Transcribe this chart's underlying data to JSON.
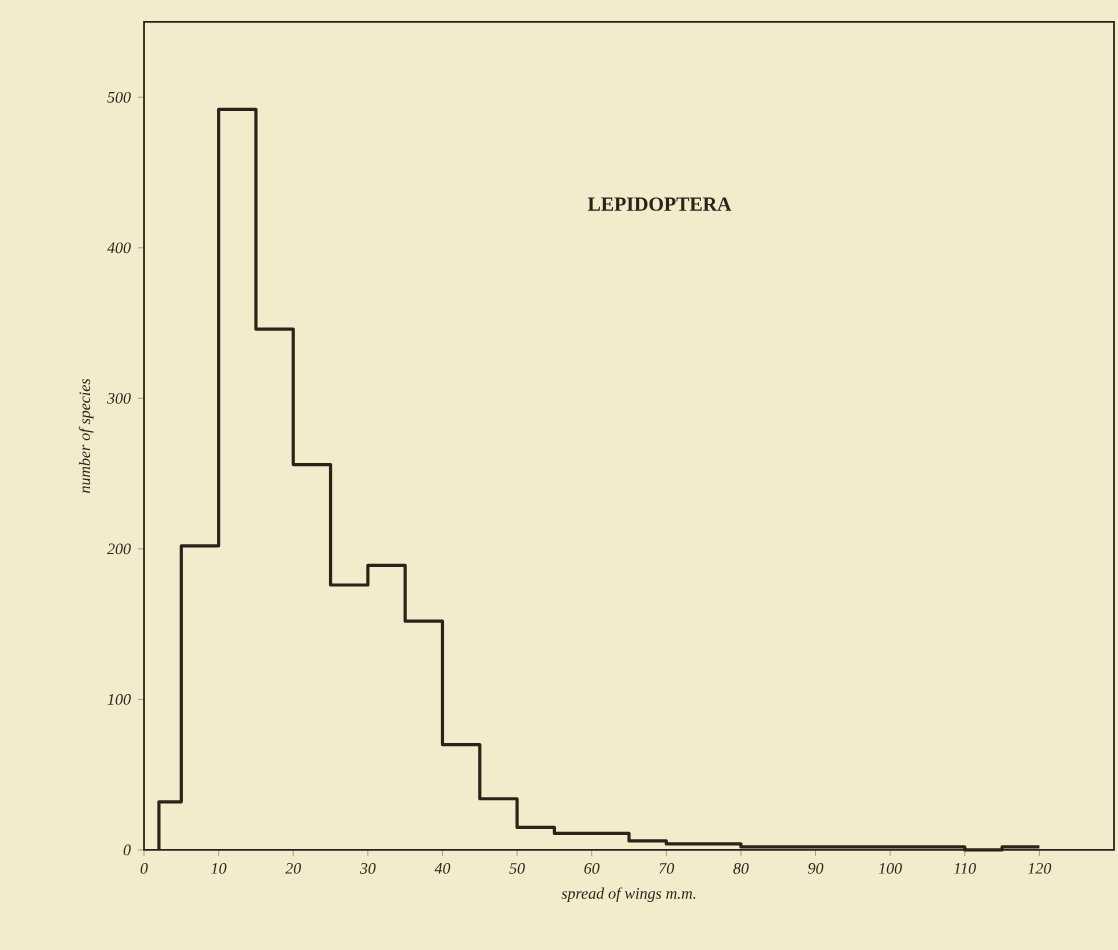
{
  "chart_data": {
    "type": "histogram",
    "xlabel": "spread of wings m.m.",
    "ylabel": "number of species",
    "annotations": [
      "LEPIDOPTERA"
    ],
    "bins": [
      2,
      5,
      10,
      15,
      20,
      25,
      30,
      35,
      40,
      45,
      50,
      55,
      60,
      65,
      70,
      75,
      80,
      85,
      90,
      95,
      100,
      105,
      110,
      115,
      120
    ],
    "values": [
      32,
      202,
      492,
      346,
      256,
      176,
      189,
      152,
      70,
      34,
      15,
      11,
      11,
      6,
      4,
      4,
      2,
      2,
      2,
      2,
      2,
      2,
      0,
      2
    ],
    "color": "#2b2319",
    "xlim": [
      0,
      130
    ],
    "xticks": [
      0,
      10,
      20,
      30,
      40,
      50,
      60,
      70,
      80,
      90,
      100,
      110,
      120
    ],
    "ylim": [
      0,
      550
    ],
    "yticks": [
      0,
      100,
      200,
      300,
      400,
      500
    ],
    "grid": false
  }
}
